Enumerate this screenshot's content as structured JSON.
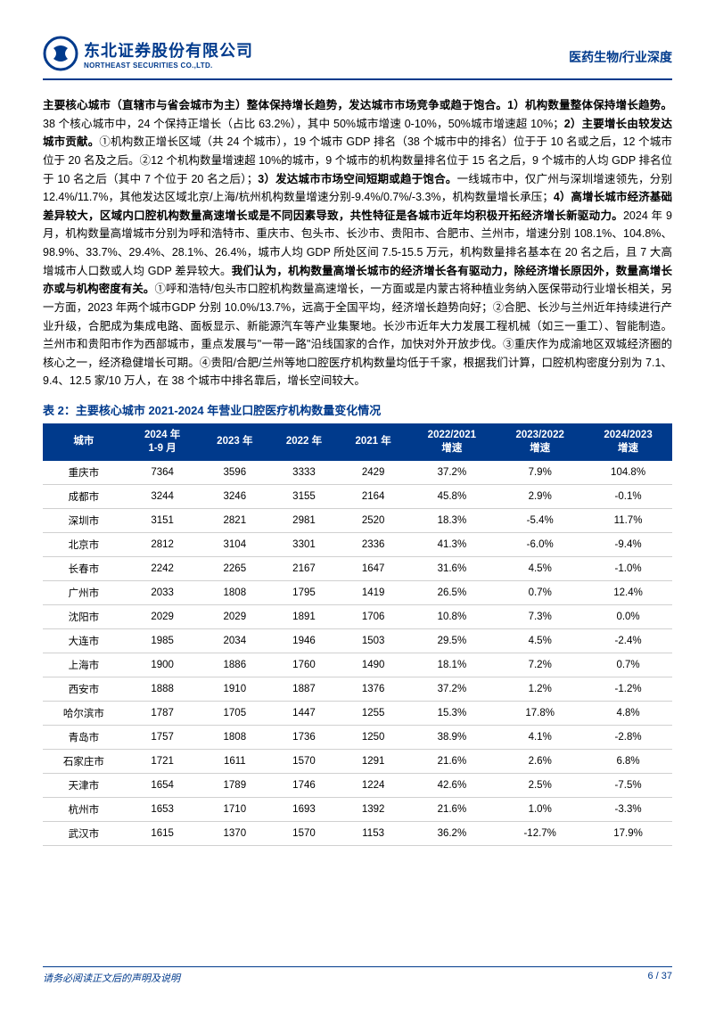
{
  "header": {
    "logo_cn": "东北证券股份有限公司",
    "logo_en": "NORTHEAST SECURITIES CO.,LTD.",
    "right_text": "医药生物/行业深度"
  },
  "paragraph": {
    "segments": [
      {
        "bold": true,
        "text": "主要核心城市（直辖市与省会城市为主）整体保持增长趋势，发达城市市场竞争或趋于饱合。1）机构数量整体保持增长趋势。"
      },
      {
        "bold": false,
        "text": "38 个核心城市中，24 个保持正增长（占比 63.2%），其中 50%城市增速 0-10%，50%城市增速超 10%；"
      },
      {
        "bold": true,
        "text": "2）主要增长由较发达城市贡献。"
      },
      {
        "bold": false,
        "text": "①机构数正增长区域（共 24 个城市），19 个城市 GDP 排名（38 个城市中的排名）位于于 10 名或之后，12 个城市位于 20 名及之后。②12 个机构数量增速超 10%的城市，9 个城市的机构数量排名位于 15 名之后，9 个城市的人均 GDP 排名位于 10 名之后（其中 7 个位于 20 名之后）；"
      },
      {
        "bold": true,
        "text": "3）发达城市市场空间短期或趋于饱合。"
      },
      {
        "bold": false,
        "text": "一线城市中，仅广州与深圳增速领先，分别 12.4%/11.7%，其他发达区域北京/上海/杭州机构数量增速分别-9.4%/0.7%/-3.3%，机构数量增长承压；"
      },
      {
        "bold": true,
        "text": "4）高增长城市经济基础差异较大，区域内口腔机构数量高速增长或是不同因素导致，共性特征是各城市近年均积极开拓经济增长新驱动力。"
      },
      {
        "bold": false,
        "text": "2024 年 9 月，机构数量高增城市分别为呼和浩特市、重庆市、包头市、长沙市、贵阳市、合肥市、兰州市，增速分别 108.1%、104.8%、98.9%、33.7%、29.4%、28.1%、26.4%，城市人均 GDP 所处区间 7.5-15.5 万元，机构数量排名基本在 20 名之后，且 7 大高增城市人口数或人均 GDP 差异较大。"
      },
      {
        "bold": true,
        "text": "我们认为，机构数量高增长城市的经济增长各有驱动力，除经济增长原因外，数量高增长亦或与机构密度有关。"
      },
      {
        "bold": false,
        "text": "①呼和浩特/包头市口腔机构数量高速增长，一方面或是内蒙古将种植业务纳入医保带动行业增长相关，另一方面，2023 年两个城市GDP 分别 10.0%/13.7%，远高于全国平均，经济增长趋势向好；②合肥、长沙与兰州近年持续进行产业升级，合肥成为集成电路、面板显示、新能源汽车等产业集聚地。长沙市近年大力发展工程机械（如三一重工）、智能制造。兰州市和贵阳市作为西部城市，重点发展与\"一带一路\"沿线国家的合作，加快对外开放步伐。③重庆作为成渝地区双城经济圈的核心之一，经济稳健增长可期。④贵阳/合肥/兰州等地口腔医疗机构数量均低于千家，根据我们计算，口腔机构密度分别为 7.1、9.4、12.5 家/10 万人，在 38 个城市中排名靠后，增长空间较大。"
      }
    ]
  },
  "table": {
    "caption": "表 2：主要核心城市 2021-2024 年营业口腔医疗机构数量变化情况",
    "columns": [
      "城市",
      "2024 年\n1-9 月",
      "2023 年",
      "2022 年",
      "2021 年",
      "2022/2021\n增速",
      "2023/2022\n增速",
      "2024/2023\n增速"
    ],
    "col_widths": [
      "13%",
      "12%",
      "11%",
      "11%",
      "11%",
      "14%",
      "14%",
      "14%"
    ],
    "rows": [
      [
        "重庆市",
        "7364",
        "3596",
        "3333",
        "2429",
        "37.2%",
        "7.9%",
        "104.8%"
      ],
      [
        "成都市",
        "3244",
        "3246",
        "3155",
        "2164",
        "45.8%",
        "2.9%",
        "-0.1%"
      ],
      [
        "深圳市",
        "3151",
        "2821",
        "2981",
        "2520",
        "18.3%",
        "-5.4%",
        "11.7%"
      ],
      [
        "北京市",
        "2812",
        "3104",
        "3301",
        "2336",
        "41.3%",
        "-6.0%",
        "-9.4%"
      ],
      [
        "长春市",
        "2242",
        "2265",
        "2167",
        "1647",
        "31.6%",
        "4.5%",
        "-1.0%"
      ],
      [
        "广州市",
        "2033",
        "1808",
        "1795",
        "1419",
        "26.5%",
        "0.7%",
        "12.4%"
      ],
      [
        "沈阳市",
        "2029",
        "2029",
        "1891",
        "1706",
        "10.8%",
        "7.3%",
        "0.0%"
      ],
      [
        "大连市",
        "1985",
        "2034",
        "1946",
        "1503",
        "29.5%",
        "4.5%",
        "-2.4%"
      ],
      [
        "上海市",
        "1900",
        "1886",
        "1760",
        "1490",
        "18.1%",
        "7.2%",
        "0.7%"
      ],
      [
        "西安市",
        "1888",
        "1910",
        "1887",
        "1376",
        "37.2%",
        "1.2%",
        "-1.2%"
      ],
      [
        "哈尔滨市",
        "1787",
        "1705",
        "1447",
        "1255",
        "15.3%",
        "17.8%",
        "4.8%"
      ],
      [
        "青岛市",
        "1757",
        "1808",
        "1736",
        "1250",
        "38.9%",
        "4.1%",
        "-2.8%"
      ],
      [
        "石家庄市",
        "1721",
        "1611",
        "1570",
        "1291",
        "21.6%",
        "2.6%",
        "6.8%"
      ],
      [
        "天津市",
        "1654",
        "1789",
        "1746",
        "1224",
        "42.6%",
        "2.5%",
        "-7.5%"
      ],
      [
        "杭州市",
        "1653",
        "1710",
        "1693",
        "1392",
        "21.6%",
        "1.0%",
        "-3.3%"
      ],
      [
        "武汉市",
        "1615",
        "1370",
        "1570",
        "1153",
        "36.2%",
        "-12.7%",
        "17.9%"
      ]
    ]
  },
  "footer": {
    "left": "请务必阅读正文后的声明及说明",
    "right": "6 / 37"
  },
  "colors": {
    "brand": "#003a8c",
    "table_header_bg": "#003a8c",
    "table_header_fg": "#ffffff",
    "row_border": "#d0d0d0"
  }
}
